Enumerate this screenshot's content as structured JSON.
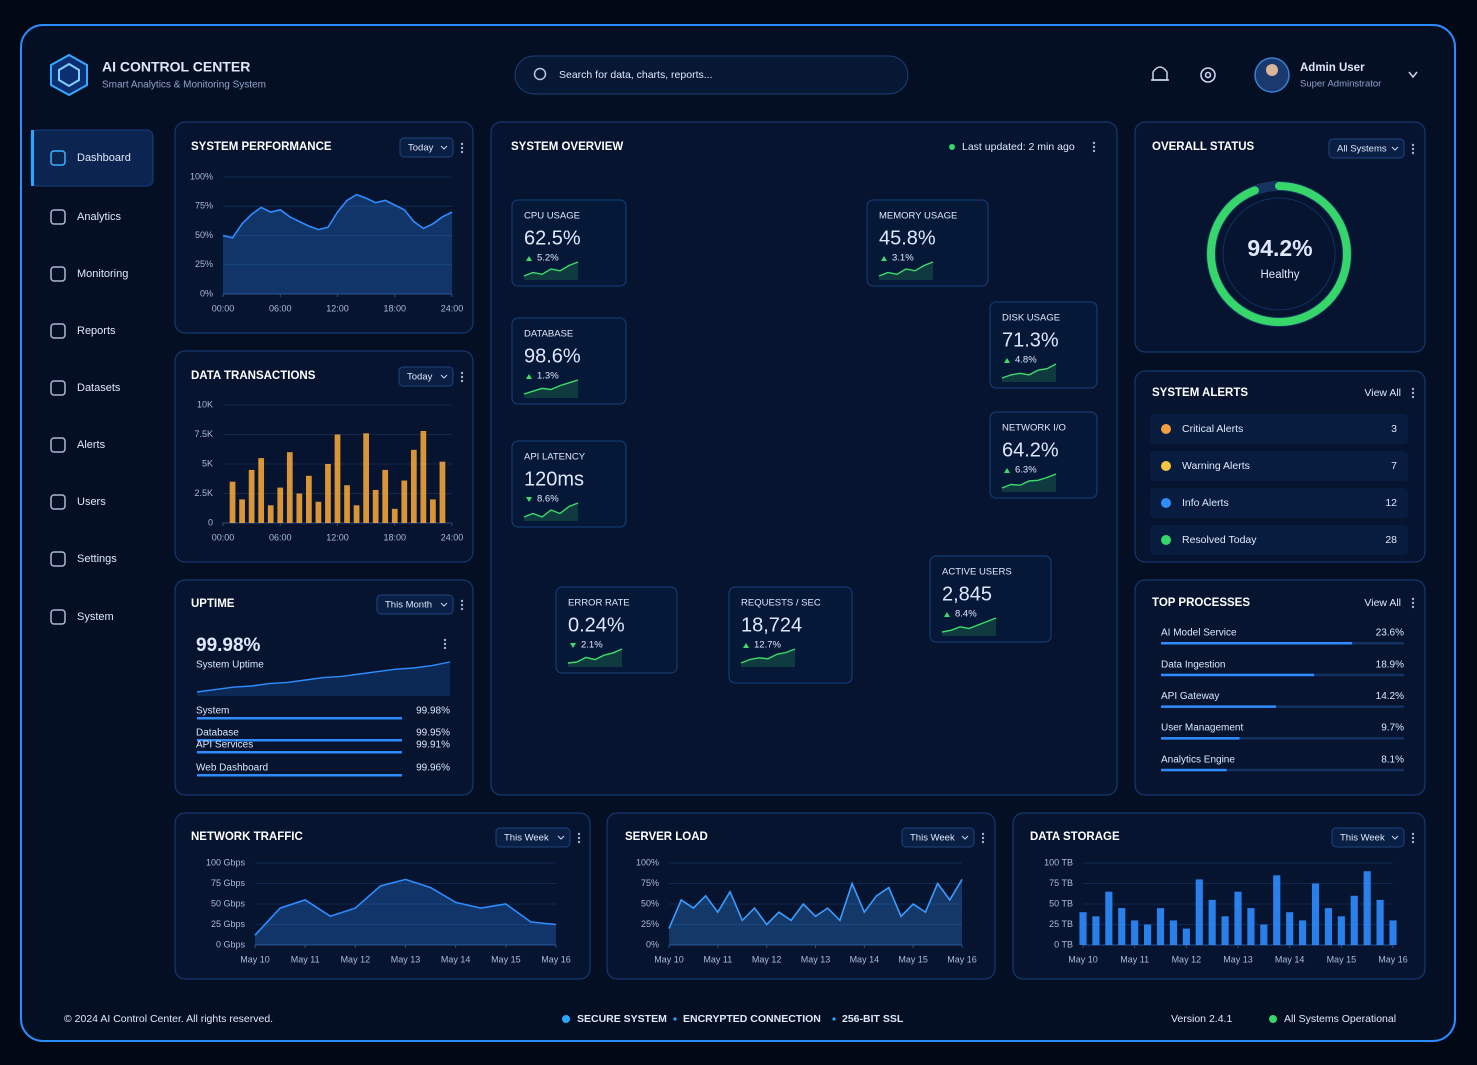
{
  "header": {
    "title": "AI CONTROL CENTER",
    "subtitle": "Smart Analytics & Monitoring System",
    "search": "Search for data, charts, reports...",
    "user": "Admin User",
    "role": "Super Adminstrator"
  },
  "nav": {
    "items": [
      "Dashboard",
      "Analytics",
      "Monitoring",
      "Reports",
      "Datasets",
      "Alerts",
      "Users",
      "Settings",
      "System"
    ],
    "active": 0
  },
  "chart_data": [
    {
      "type": "area",
      "title": "SYSTEM PERFORMANCE",
      "filter": "Today",
      "color": "#2f8cff",
      "grid": true,
      "x": [
        0,
        1,
        2,
        3,
        4,
        5,
        6,
        7,
        8,
        9,
        10,
        11,
        12,
        13,
        14,
        15,
        16,
        17,
        18,
        19,
        20,
        21,
        22,
        23,
        24
      ],
      "values": [
        50,
        48,
        60,
        68,
        74,
        70,
        72,
        66,
        62,
        58,
        55,
        57,
        70,
        80,
        85,
        82,
        78,
        80,
        76,
        72,
        62,
        56,
        60,
        66,
        70
      ],
      "xlim": [
        0,
        24
      ],
      "xticks": [
        {
          "value": 0,
          "label": "00:00"
        },
        {
          "value": 6,
          "label": "06:00"
        },
        {
          "value": 12,
          "label": "12:00"
        },
        {
          "value": 18,
          "label": "18:00"
        },
        {
          "value": 24,
          "label": "24:00"
        }
      ],
      "ylim": [
        0,
        100
      ],
      "yticks": [
        {
          "value": 0,
          "label": "0%"
        },
        {
          "value": 25,
          "label": "25%"
        },
        {
          "value": 50,
          "label": "50%"
        },
        {
          "value": 75,
          "label": "75%"
        },
        {
          "value": 100,
          "label": "100%"
        }
      ]
    },
    {
      "type": "bar",
      "title": "DATA TRANSACTIONS",
      "filter": "Today",
      "color": "#f2a33a",
      "grid": true,
      "x": [
        1,
        2,
        3,
        4,
        5,
        6,
        7,
        8,
        9,
        10,
        11,
        12,
        13,
        14,
        15,
        16,
        17,
        18,
        19,
        20,
        21,
        22,
        23
      ],
      "values": [
        3500,
        2000,
        4500,
        5500,
        1500,
        3000,
        6000,
        2500,
        4000,
        1800,
        5000,
        7500,
        3200,
        1500,
        7600,
        2800,
        4500,
        1200,
        3600,
        6200,
        7800,
        2000,
        5200
      ],
      "xlim": [
        0,
        24
      ],
      "xticks": [
        {
          "value": 0,
          "label": "00:00"
        },
        {
          "value": 6,
          "label": "06:00"
        },
        {
          "value": 12,
          "label": "12:00"
        },
        {
          "value": 18,
          "label": "18:00"
        },
        {
          "value": 24,
          "label": "24:00"
        }
      ],
      "ylim": [
        0,
        10000
      ],
      "yticks": [
        0,
        {
          "value": 2500,
          "label": "2.5K"
        },
        {
          "value": 5000,
          "label": "5K"
        },
        {
          "value": 7500,
          "label": "7.5K"
        },
        {
          "value": 10000,
          "label": "10K"
        }
      ]
    },
    {
      "type": "area",
      "title": "NETWORK TRAFFIC",
      "filter": "This Week",
      "color": "#2f8cff",
      "grid": true,
      "x": [
        10,
        10.5,
        11,
        11.5,
        12,
        12.5,
        13,
        13.5,
        14,
        14.5,
        15,
        15.5,
        16
      ],
      "values": [
        12,
        45,
        55,
        35,
        45,
        72,
        80,
        70,
        52,
        45,
        50,
        28,
        25
      ],
      "xlim": [
        10,
        16
      ],
      "xticks": [
        {
          "value": 10,
          "label": "May 10"
        },
        {
          "value": 11,
          "label": "May 11"
        },
        {
          "value": 12,
          "label": "May 12"
        },
        {
          "value": 13,
          "label": "May 13"
        },
        {
          "value": 14,
          "label": "May 14"
        },
        {
          "value": 15,
          "label": "May 15"
        },
        {
          "value": 16,
          "label": "May 16"
        }
      ],
      "ylim": [
        0,
        100
      ],
      "yticks": [
        {
          "value": 0,
          "label": "0 Gbps"
        },
        {
          "value": 25,
          "label": "25 Gbps"
        },
        {
          "value": 50,
          "label": "50 Gbps"
        },
        {
          "value": 75,
          "label": "75 Gbps"
        },
        {
          "value": 100,
          "label": "100 Gbps"
        }
      ]
    },
    {
      "type": "area",
      "title": "SERVER LOAD",
      "filter": "This Week",
      "color": "#3b9cff",
      "grid": true,
      "x": [
        10,
        10.25,
        10.5,
        10.75,
        11,
        11.25,
        11.5,
        11.75,
        12,
        12.25,
        12.5,
        12.75,
        13,
        13.25,
        13.5,
        13.75,
        14,
        14.25,
        14.5,
        14.75,
        15,
        15.25,
        15.5,
        15.75,
        16
      ],
      "values": [
        20,
        55,
        45,
        60,
        40,
        65,
        30,
        45,
        25,
        40,
        30,
        50,
        35,
        45,
        30,
        75,
        40,
        60,
        70,
        35,
        50,
        40,
        75,
        55,
        80
      ],
      "xlim": [
        10,
        16
      ],
      "xticks": [
        {
          "value": 10,
          "label": "May 10"
        },
        {
          "value": 11,
          "label": "May 11"
        },
        {
          "value": 12,
          "label": "May 12"
        },
        {
          "value": 13,
          "label": "May 13"
        },
        {
          "value": 14,
          "label": "May 14"
        },
        {
          "value": 15,
          "label": "May 15"
        },
        {
          "value": 16,
          "label": "May 16"
        }
      ],
      "ylim": [
        0,
        100
      ],
      "yticks": [
        {
          "value": 0,
          "label": "0%"
        },
        {
          "value": 25,
          "label": "25%"
        },
        {
          "value": 50,
          "label": "50%"
        },
        {
          "value": 75,
          "label": "75%"
        },
        {
          "value": 100,
          "label": "100%"
        }
      ]
    },
    {
      "type": "bar",
      "title": "DATA STORAGE",
      "filter": "This Week",
      "color": "#2f8cff",
      "grid": true,
      "x": [
        10,
        10.25,
        10.5,
        10.75,
        11,
        11.25,
        11.5,
        11.75,
        12,
        12.25,
        12.5,
        12.75,
        13,
        13.25,
        13.5,
        13.75,
        14,
        14.25,
        14.5,
        14.75,
        15,
        15.25,
        15.5,
        15.75,
        16
      ],
      "values": [
        40,
        35,
        65,
        45,
        30,
        25,
        45,
        30,
        20,
        80,
        55,
        35,
        65,
        45,
        25,
        85,
        40,
        30,
        75,
        45,
        35,
        60,
        90,
        55,
        30
      ],
      "xlim": [
        10,
        16
      ],
      "xticks": [
        {
          "value": 10,
          "label": "May 10"
        },
        {
          "value": 11,
          "label": "May 11"
        },
        {
          "value": 12,
          "label": "May 12"
        },
        {
          "value": 13,
          "label": "May 13"
        },
        {
          "value": 14,
          "label": "May 14"
        },
        {
          "value": 15,
          "label": "May 15"
        },
        {
          "value": 16,
          "label": "May 16"
        }
      ],
      "ylim": [
        0,
        100
      ],
      "yticks": [
        {
          "value": 0,
          "label": "0 TB"
        },
        {
          "value": 25,
          "label": "25 TB"
        },
        {
          "value": 50,
          "label": "50 TB"
        },
        {
          "value": 75,
          "label": "75 TB"
        },
        {
          "value": 100,
          "label": "100 TB"
        }
      ]
    }
  ],
  "uptime": {
    "title": "UPTIME",
    "filter": "This Month",
    "value": "99.98%",
    "caption": "System Uptime",
    "trend": [
      20,
      22,
      24,
      25,
      27,
      28,
      30,
      32,
      33,
      35,
      37,
      39,
      40,
      42,
      45
    ],
    "rows": [
      {
        "name": "System",
        "value": 99.98,
        "label": "99.98%"
      },
      {
        "name": "Database",
        "value": 99.95,
        "label": "99.95%"
      },
      {
        "name": "API Services",
        "value": 99.91,
        "label": "99.91%"
      },
      {
        "name": "Web Dashboard",
        "value": 99.96,
        "label": "99.96%"
      }
    ]
  },
  "overview": {
    "title": "SYSTEM OVERVIEW",
    "updated": "Last updated: 2 min ago",
    "metrics": [
      {
        "name": "CPU USAGE",
        "value": "62.5%",
        "change": "5.2%",
        "direction": "up",
        "trend": [
          3,
          4,
          3.5,
          5,
          4.5,
          6,
          7
        ]
      },
      {
        "name": "MEMORY USAGE",
        "value": "45.8%",
        "change": "3.1%",
        "direction": "up",
        "trend": [
          2,
          3,
          2.5,
          4,
          3.5,
          5,
          6
        ]
      },
      {
        "name": "DATABASE",
        "value": "98.6%",
        "change": "1.3%",
        "direction": "up",
        "trend": [
          3,
          3.5,
          4,
          3.8,
          4.5,
          5,
          5.5
        ]
      },
      {
        "name": "DISK USAGE",
        "value": "71.3%",
        "change": "4.8%",
        "direction": "up",
        "trend": [
          2,
          3,
          3.5,
          3,
          4.5,
          5,
          6.5
        ]
      },
      {
        "name": "API LATENCY",
        "value": "120ms",
        "change": "8.6%",
        "direction": "down",
        "trend": [
          3,
          3.5,
          3,
          4,
          3.5,
          4.5,
          5
        ]
      },
      {
        "name": "NETWORK I/O",
        "value": "64.2%",
        "change": "6.3%",
        "direction": "up",
        "trend": [
          2,
          3,
          2.8,
          4,
          4.2,
          5,
          6
        ]
      },
      {
        "name": "ACTIVE USERS",
        "value": "2,845",
        "change": "8.4%",
        "direction": "up",
        "trend": [
          2,
          2.5,
          3.5,
          3,
          4,
          5,
          6
        ]
      },
      {
        "name": "ERROR RATE",
        "value": "0.24%",
        "change": "2.1%",
        "direction": "down",
        "trend": [
          3,
          3.2,
          4,
          3.6,
          4.4,
          4.8,
          5.5
        ]
      },
      {
        "name": "REQUESTS / SEC",
        "value": "18,724",
        "change": "12.7%",
        "direction": "up",
        "trend": [
          2,
          3,
          3.5,
          3.2,
          4.5,
          5,
          6
        ]
      }
    ]
  },
  "status": {
    "title": "OVERALL STATUS",
    "filter": "All Systems",
    "value": 94.2,
    "label": "94.2%",
    "state": "Healthy"
  },
  "alerts": {
    "title": "SYSTEM ALERTS",
    "link": "View All",
    "rows": [
      {
        "name": "Critical Alerts",
        "count": 3,
        "color": "#f0a040"
      },
      {
        "name": "Warning Alerts",
        "count": 7,
        "color": "#f5c542"
      },
      {
        "name": "Info Alerts",
        "count": 12,
        "color": "#2f8cff"
      },
      {
        "name": "Resolved Today",
        "count": 28,
        "color": "#37d66a"
      }
    ]
  },
  "processes": {
    "title": "TOP PROCESSES",
    "link": "View All",
    "rows": [
      {
        "name": "AI Model Service",
        "value": 23.6,
        "label": "23.6%"
      },
      {
        "name": "Data Ingestion",
        "value": 18.9,
        "label": "18.9%"
      },
      {
        "name": "API Gateway",
        "value": 14.2,
        "label": "14.2%"
      },
      {
        "name": "User Management",
        "value": 9.7,
        "label": "9.7%"
      },
      {
        "name": "Analytics Engine",
        "value": 8.1,
        "label": "8.1%"
      }
    ]
  },
  "footer": {
    "copyright": "© 2024 AI Control Center. All rights reserved.",
    "security": [
      "SECURE SYSTEM",
      "ENCRYPTED CONNECTION",
      "256-BIT SSL"
    ],
    "version": "Version 2.4.1",
    "status": "All Systems Operational"
  }
}
